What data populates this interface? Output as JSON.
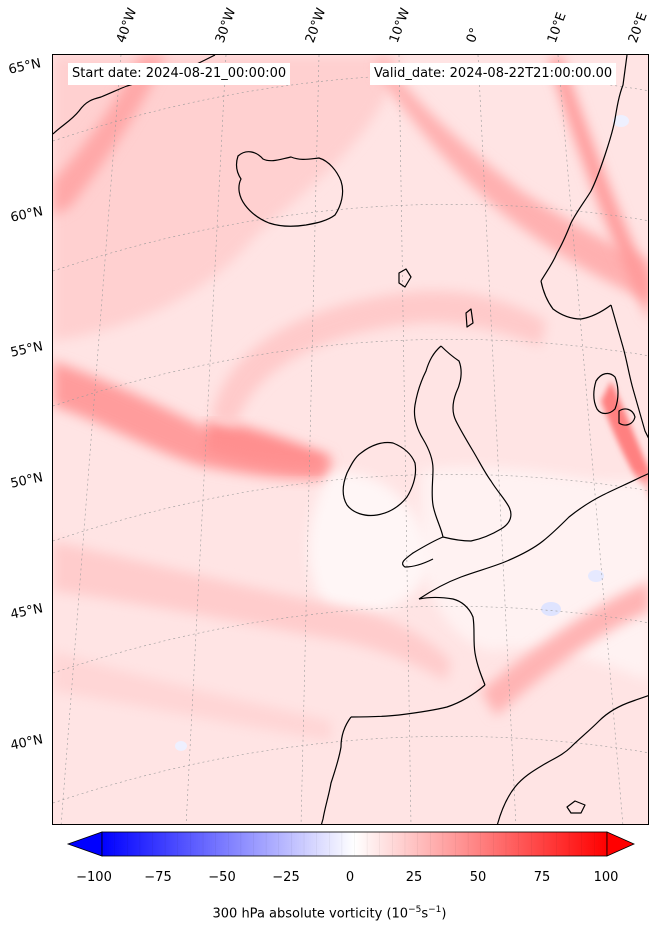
{
  "header": {
    "start_date": "Start date: 2024-08-21_00:00:00",
    "valid_date": "Valid_date: 2024-08-22T21:00:00.00"
  },
  "map": {
    "longitude_labels": [
      "40°W",
      "30°W",
      "20°W",
      "10°W",
      "0°",
      "10°E",
      "20°E"
    ],
    "latitude_labels": [
      "65°N",
      "60°N",
      "55°N",
      "50°N",
      "45°N",
      "40°N"
    ],
    "field_colors": {
      "strong_positive": "#ff9c9c",
      "moderate_positive": "#ffc4c4",
      "weak_positive": "#ffe4e4",
      "near_zero": "#fff6f6",
      "weak_negative": "#eef0ff",
      "coastline": "#000000",
      "gridline": "#9a9a9a"
    },
    "gridlines": "dotted"
  },
  "colorbar": {
    "ticks": [
      "−100",
      "−75",
      "−50",
      "−25",
      "0",
      "25",
      "50",
      "75",
      "100"
    ],
    "range": [
      -100,
      100
    ],
    "colormap": "bwr",
    "extend": "both",
    "label": "300 hPa absolute vorticity (10",
    "label_exp1": "−5",
    "label_mid": "s",
    "label_exp2": "−1",
    "label_end": ")"
  }
}
